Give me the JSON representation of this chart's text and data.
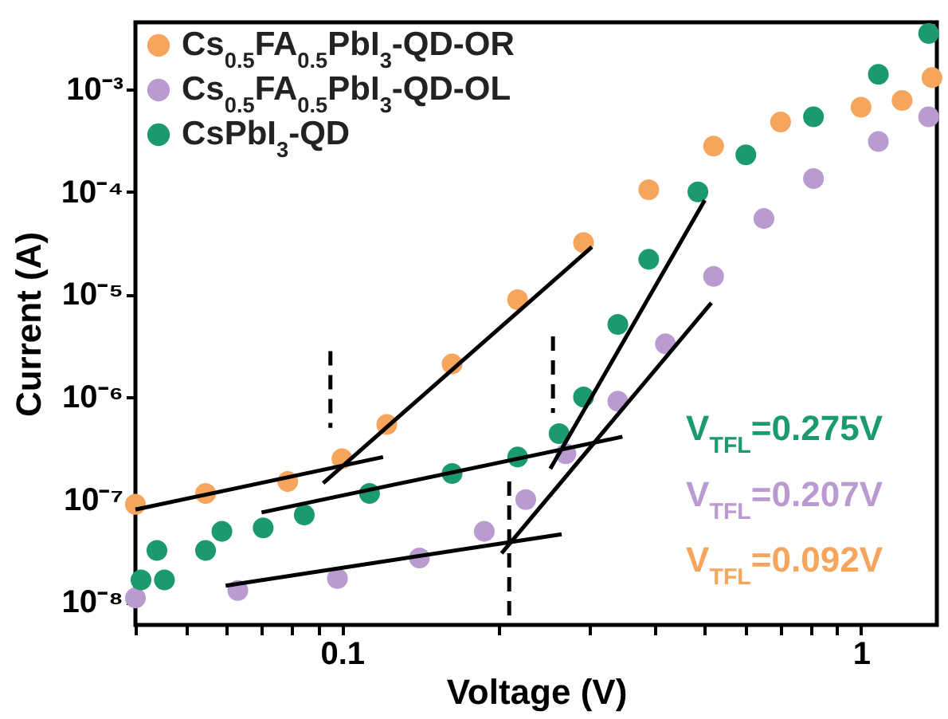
{
  "chart_data": {
    "type": "scatter",
    "xlabel": "Voltage (V)",
    "ylabel": "Current (A)",
    "log": "xy",
    "grid": false,
    "legend": "top left",
    "marker": "circle",
    "xlim": [
      0.04,
      1.4
    ],
    "ylim": [
      6e-09,
      0.0045
    ],
    "xticks": [
      {
        "value": 0.04,
        "label": null
      },
      {
        "value": 0.05,
        "label": null
      },
      {
        "value": 0.06,
        "label": null
      },
      {
        "value": 0.07,
        "label": null
      },
      {
        "value": 0.08,
        "label": null
      },
      {
        "value": 0.09,
        "label": null
      },
      0.1,
      {
        "value": 0.2,
        "label": null
      },
      {
        "value": 0.3,
        "label": null
      },
      {
        "value": 0.4,
        "label": null
      },
      {
        "value": 0.5,
        "label": null
      },
      {
        "value": 0.6,
        "label": null
      },
      {
        "value": 0.7,
        "label": null
      },
      {
        "value": 0.8,
        "label": null
      },
      {
        "value": 0.9,
        "label": null
      },
      1
    ],
    "yticks": [
      {
        "value": 1e-08,
        "label": "10⁻⁸"
      },
      {
        "value": 1e-07,
        "label": "10⁻⁷"
      },
      {
        "value": 1e-06,
        "label": "10⁻⁶"
      },
      {
        "value": 1e-05,
        "label": "10⁻⁵"
      },
      {
        "value": 0.0001,
        "label": "10⁻⁴"
      },
      {
        "value": 0.001,
        "label": "10⁻³"
      }
    ],
    "series": [
      {
        "name": "Cs$_{0.5}$FA$_{0.5}$PbI$_{3}$-QD-OR",
        "color": "#f5a55c",
        "x": [
          0.04,
          0.0546,
          0.0786,
          0.1,
          0.122,
          0.163,
          0.218,
          0.292,
          0.39,
          0.52,
          0.7,
          1.0,
          1.2,
          1.37
        ],
        "values": [
          9e-08,
          1.15e-07,
          1.5e-07,
          2.5e-07,
          5.4e-07,
          2.1e-06,
          8.9e-06,
          3.2e-05,
          0.000105,
          0.00028,
          0.00048,
          0.00067,
          0.00078,
          0.0013
        ]
      },
      {
        "name": "Cs$_{0.5}$FA$_{0.5}$PbI$_{3}$-QD-OL",
        "color": "#b99bd2",
        "x": [
          0.04,
          0.063,
          0.098,
          0.141,
          0.188,
          0.226,
          0.27,
          0.34,
          0.42,
          0.52,
          0.65,
          0.81,
          1.08,
          1.35
        ],
        "values": [
          1.1e-08,
          1.3e-08,
          1.7e-08,
          2.7e-08,
          4.9e-08,
          1e-07,
          2.8e-07,
          9.1e-07,
          3.3e-06,
          1.5e-05,
          5.5e-05,
          0.000135,
          0.00031,
          0.00054
        ]
      },
      {
        "name": "CsPbI$_{3}$-QD",
        "color": "#1b9a6e",
        "x": [
          0.041,
          0.0455,
          0.044,
          0.0546,
          0.0587,
          0.0705,
          0.0846,
          0.113,
          0.163,
          0.218,
          0.262,
          0.292,
          0.34,
          0.39,
          0.485,
          0.6,
          0.81,
          1.08,
          1.35
        ],
        "values": [
          1.65e-08,
          1.65e-08,
          3.2e-08,
          3.2e-08,
          4.9e-08,
          5.3e-08,
          7.1e-08,
          1.15e-07,
          1.8e-07,
          2.6e-07,
          4.4e-07,
          1e-06,
          5.1e-06,
          2.2e-05,
          0.0001,
          0.00023,
          0.00054,
          0.0014,
          0.0035
        ]
      },
      {
        "type": "line",
        "marker": "none",
        "color": "#000000",
        "line_style": "solid",
        "x": [
          0.04,
          0.12
        ],
        "values": [
          8e-08,
          2.6e-07
        ]
      },
      {
        "type": "line",
        "marker": "none",
        "color": "#000000",
        "line_style": "solid",
        "x": [
          0.092,
          0.303
        ],
        "values": [
          1.45e-07,
          2.9e-05
        ]
      },
      {
        "type": "line",
        "marker": "none",
        "color": "#000000",
        "line_style": "solid",
        "x": [
          0.07,
          0.347
        ],
        "values": [
          7.5e-08,
          4.1e-07
        ]
      },
      {
        "type": "line",
        "marker": "none",
        "color": "#000000",
        "line_style": "solid",
        "x": [
          0.252,
          0.5
        ],
        "values": [
          2e-07,
          8.3e-05
        ]
      },
      {
        "type": "line",
        "marker": "none",
        "color": "#000000",
        "line_style": "solid",
        "x": [
          0.0597,
          0.265
        ],
        "values": [
          1.45e-08,
          4.6e-08
        ]
      },
      {
        "type": "line",
        "marker": "none",
        "color": "#000000",
        "line_style": "solid",
        "x": [
          0.203,
          0.515
        ],
        "values": [
          3e-08,
          8.3e-06
        ]
      },
      {
        "type": "line",
        "marker": "none",
        "color": "#000000",
        "line_style": "dashed",
        "x": [
          0.095,
          0.095
        ],
        "values": [
          2.8e-06,
          5e-07
        ]
      },
      {
        "type": "line",
        "marker": "none",
        "color": "#000000",
        "line_style": "dashed",
        "x": [
          0.21,
          0.21
        ],
        "values": [
          1.5e-07,
          7.4e-09
        ]
      },
      {
        "type": "line",
        "marker": "none",
        "color": "#000000",
        "line_style": "dashed",
        "x": [
          0.255,
          0.255
        ],
        "values": [
          3.9e-06,
          7e-07
        ]
      }
    ],
    "annotations": [
      "V$_{TFL}$=0.275V",
      "V$_{TFL}$=0.207V",
      "V$_{TFL}$=0.092V"
    ]
  }
}
